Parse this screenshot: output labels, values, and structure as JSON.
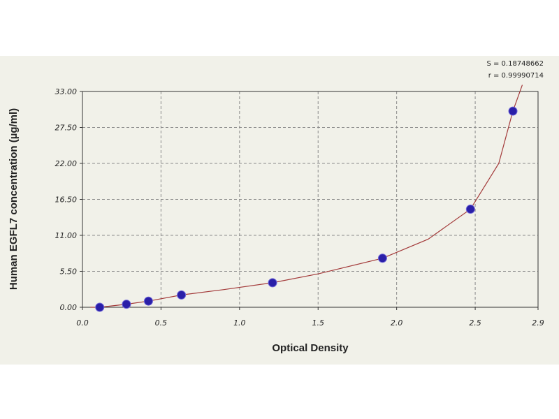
{
  "chart_data": {
    "type": "scatter",
    "xlabel": "Optical Density",
    "ylabel": "Human EGFL7 concentration (µg/ml)",
    "xlim": [
      0.0,
      2.9
    ],
    "ylim": [
      0.0,
      33.0
    ],
    "x_ticks": [
      0.0,
      0.5,
      1.0,
      1.5,
      2.0,
      2.5,
      2.9
    ],
    "x_tick_labels": [
      "0.0",
      "0.5",
      "1.0",
      "1.5",
      "2.0",
      "2.5",
      "2.9"
    ],
    "y_ticks": [
      0.0,
      5.5,
      11.0,
      16.5,
      22.0,
      27.5,
      33.0
    ],
    "y_tick_labels": [
      "0.00",
      "5.50",
      "11.00",
      "16.50",
      "22.00",
      "27.50",
      "33.00"
    ],
    "grid": true,
    "stats": {
      "s_label": "S = 0.18748662",
      "r_label": "r = 0.99990714"
    },
    "colors": {
      "points": "#2a1fa8",
      "curve": "#a33a3a",
      "background": "#f1f1e9",
      "grid": "#8a8a8a"
    },
    "series": [
      {
        "x": [
          0.11,
          0.28,
          0.42,
          0.63,
          1.21,
          1.91,
          2.47,
          2.74
        ],
        "y": [
          0.0,
          0.47,
          0.94,
          1.88,
          3.75,
          7.5,
          15.0,
          30.0
        ]
      }
    ],
    "fit_curve": {
      "x": [
        0.05,
        0.11,
        0.28,
        0.42,
        0.63,
        0.9,
        1.21,
        1.5,
        1.91,
        2.2,
        2.47,
        2.65,
        2.74,
        2.8
      ],
      "y": [
        -0.3,
        0.0,
        0.47,
        0.94,
        1.88,
        2.7,
        3.75,
        5.1,
        7.5,
        10.4,
        15.0,
        22.0,
        30.0,
        34.0
      ]
    }
  }
}
